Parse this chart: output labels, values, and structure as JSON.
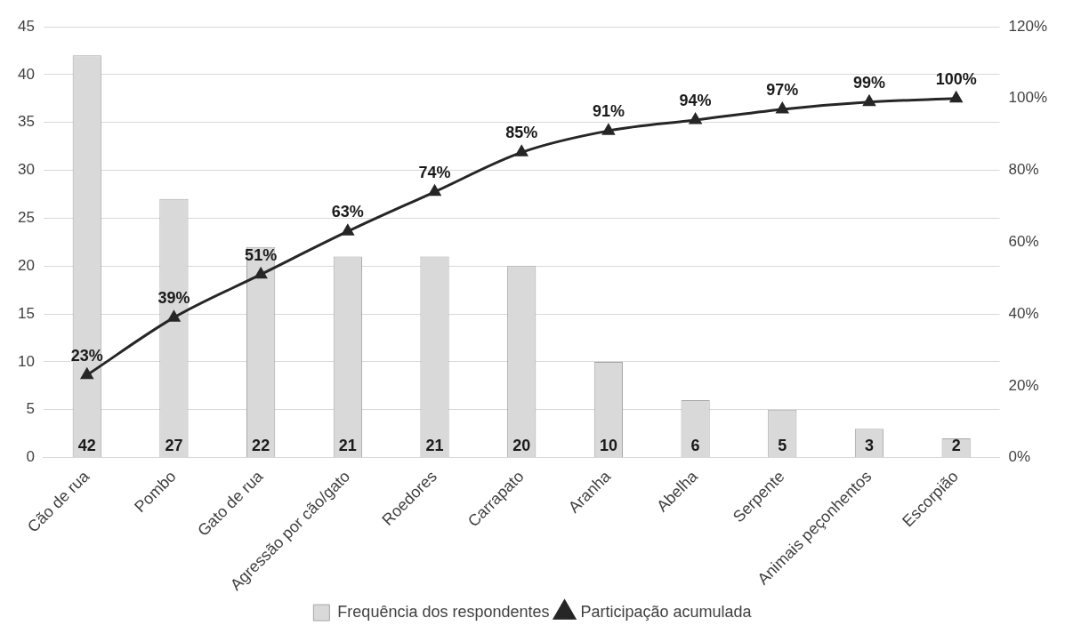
{
  "chart_data": {
    "type": "bar",
    "categories": [
      "Cão de rua",
      "Pombo",
      "Gato de rua",
      "Agressão por cão/gato",
      "Roedores",
      "Carrapato",
      "Aranha",
      "Abelha",
      "Serpente",
      "Animais peçonhentos",
      "Escorpião"
    ],
    "series": [
      {
        "name": "Frequência dos respondentes",
        "color": "#d9d9d9",
        "values": [
          42,
          27,
          22,
          21,
          21,
          20,
          10,
          6,
          5,
          3,
          2
        ]
      },
      {
        "name": "Participação acumulada",
        "type": "line",
        "axis": "y2",
        "color": "#262626",
        "marker": "triangle",
        "values": [
          23,
          39,
          51,
          63,
          74,
          85,
          91,
          94,
          97,
          99,
          100
        ],
        "value_labels": [
          "23%",
          "39%",
          "51%",
          "63%",
          "74%",
          "85%",
          "91%",
          "94%",
          "97%",
          "99%",
          "100%"
        ]
      }
    ],
    "ylim": [
      0,
      45
    ],
    "yticks": [
      0,
      5,
      10,
      15,
      20,
      25,
      30,
      35,
      40,
      45
    ],
    "y2lim": [
      0,
      120
    ],
    "y2ticks": [
      {
        "value": 0,
        "label": "0%"
      },
      {
        "value": 20,
        "label": "20%"
      },
      {
        "value": 40,
        "label": "40%"
      },
      {
        "value": 60,
        "label": "60%"
      },
      {
        "value": 80,
        "label": "80%"
      },
      {
        "value": 100,
        "label": "100%"
      },
      {
        "value": 120,
        "label": "120%"
      }
    ],
    "grid": "y",
    "legend": "bottom",
    "data_labels": true
  }
}
